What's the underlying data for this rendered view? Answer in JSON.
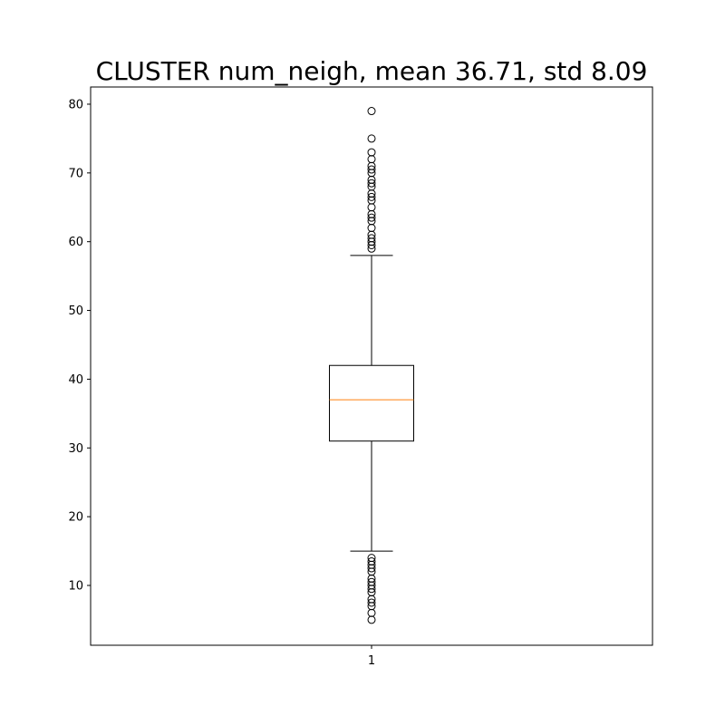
{
  "chart_data": {
    "type": "box",
    "title": "CLUSTER num_neigh, mean 36.71, std 8.09",
    "xlabel": "",
    "ylabel": "",
    "categories": [
      "1"
    ],
    "ylim": [
      1.3,
      82.5
    ],
    "yticks": [
      10,
      20,
      30,
      40,
      50,
      60,
      70,
      80
    ],
    "grid": false,
    "box": {
      "whisker_low": 15,
      "q1": 31,
      "median": 37,
      "q3": 42,
      "whisker_high": 58
    },
    "outliers_high": [
      59,
      59.5,
      60,
      60.5,
      61,
      62,
      63,
      63.5,
      64,
      65,
      66,
      66.5,
      67,
      68,
      68.5,
      69,
      70,
      70.5,
      71,
      72,
      73,
      75,
      79
    ],
    "outliers_low": [
      5,
      6,
      7,
      7.5,
      8,
      9,
      9.5,
      10,
      10.5,
      11,
      12,
      12.5,
      13,
      13.5,
      14
    ],
    "colors": {
      "box": "#000000",
      "median": "#ff7f0e",
      "outlier": "#000000",
      "axes": "#000000"
    }
  }
}
